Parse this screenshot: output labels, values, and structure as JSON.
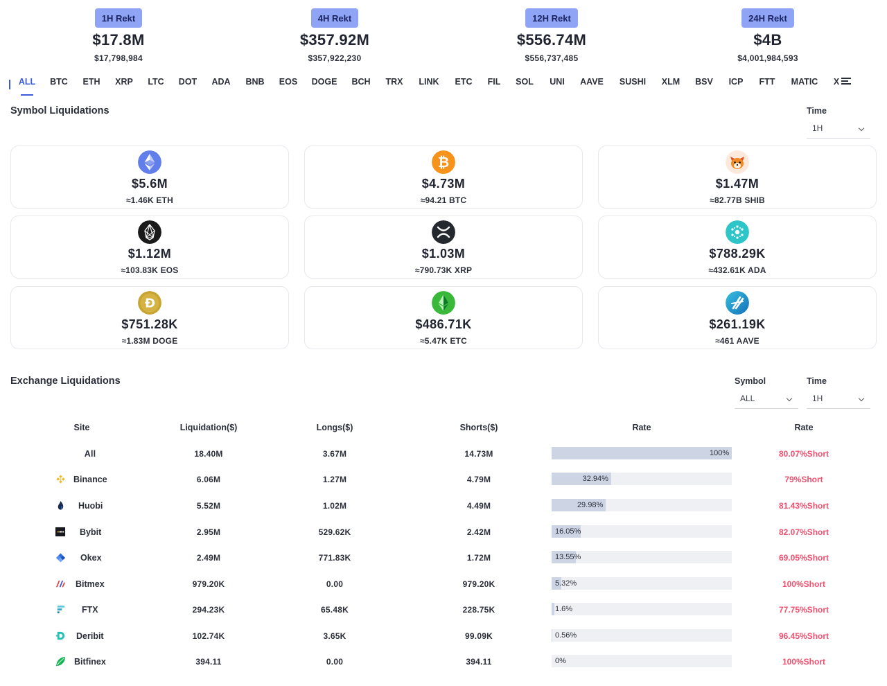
{
  "rekt": [
    {
      "label": "1H Rekt",
      "amount": "$17.8M",
      "exact": "$17,798,984"
    },
    {
      "label": "4H Rekt",
      "amount": "$357.92M",
      "exact": "$357,922,230"
    },
    {
      "label": "12H Rekt",
      "amount": "$556.74M",
      "exact": "$556,737,485"
    },
    {
      "label": "24H Rekt",
      "amount": "$4B",
      "exact": "$4,001,984,593"
    }
  ],
  "tabs": [
    "ALL",
    "BTC",
    "ETH",
    "XRP",
    "LTC",
    "DOT",
    "ADA",
    "BNB",
    "EOS",
    "DOGE",
    "BCH",
    "TRX",
    "LINK",
    "ETC",
    "FIL",
    "SOL",
    "UNI",
    "AAVE",
    "SUSHI",
    "XLM",
    "BSV",
    "ICP",
    "FTT",
    "MATIC",
    "X"
  ],
  "active_tab": "ALL",
  "symbol_section": {
    "title": "Symbol Liquidations",
    "time_label": "Time",
    "time_value": "1H"
  },
  "symbols": [
    {
      "coin": "ethereum-icon",
      "color": "#627eea",
      "amount": "$5.6M",
      "sub": "≈1.46K ETH"
    },
    {
      "coin": "bitcoin-icon",
      "color": "#f7931a",
      "amount": "$4.73M",
      "sub": "≈94.21 BTC"
    },
    {
      "coin": "shiba-icon",
      "color": "#e44f1f",
      "amount": "$1.47M",
      "sub": "≈82.77B SHIB"
    },
    {
      "coin": "eos-icon",
      "color": "#111111",
      "amount": "$1.12M",
      "sub": "≈103.83K EOS"
    },
    {
      "coin": "xrp-icon",
      "color": "#23292f",
      "amount": "$1.03M",
      "sub": "≈790.73K XRP"
    },
    {
      "coin": "cardano-icon",
      "color": "#28c8c8",
      "amount": "$788.29K",
      "sub": "≈432.61K ADA"
    },
    {
      "coin": "dogecoin-icon",
      "color": "#c2a633",
      "amount": "$751.28K",
      "sub": "≈1.83M DOGE"
    },
    {
      "coin": "ethereum-classic-icon",
      "color": "#3ab83a",
      "amount": "$486.71K",
      "sub": "≈5.47K ETC"
    },
    {
      "coin": "aave-icon",
      "color": "#1c9fd0",
      "amount": "$261.19K",
      "sub": "≈461 AAVE"
    }
  ],
  "exchange_section": {
    "title": "Exchange Liquidations",
    "symbol_label": "Symbol",
    "symbol_value": "ALL",
    "time_label": "Time",
    "time_value": "1H"
  },
  "table": {
    "headers": {
      "site": "Site",
      "liquidation": "Liquidation($)",
      "longs": "Longs($)",
      "shorts": "Shorts($)",
      "rate1": "Rate",
      "rate2": "Rate"
    },
    "rows": [
      {
        "site": "All",
        "icon": "",
        "liq": "18.40M",
        "longs": "3.67M",
        "shorts": "14.73M",
        "share_label": "100%",
        "share": 100,
        "rate": "80.07%Short"
      },
      {
        "site": "Binance",
        "icon": "binance-icon",
        "liq": "6.06M",
        "longs": "1.27M",
        "shorts": "4.79M",
        "share_label": "32.94%",
        "share": 32.94,
        "rate": "79%Short"
      },
      {
        "site": "Huobi",
        "icon": "huobi-icon",
        "liq": "5.52M",
        "longs": "1.02M",
        "shorts": "4.49M",
        "share_label": "29.98%",
        "share": 29.98,
        "rate": "81.43%Short"
      },
      {
        "site": "Bybit",
        "icon": "bybit-icon",
        "liq": "2.95M",
        "longs": "529.62K",
        "shorts": "2.42M",
        "share_label": "16.05%",
        "share": 16.05,
        "rate": "82.07%Short"
      },
      {
        "site": "Okex",
        "icon": "okex-icon",
        "liq": "2.49M",
        "longs": "771.83K",
        "shorts": "1.72M",
        "share_label": "13.55%",
        "share": 13.55,
        "rate": "69.05%Short"
      },
      {
        "site": "Bitmex",
        "icon": "bitmex-icon",
        "liq": "979.20K",
        "longs": "0.00",
        "shorts": "979.20K",
        "share_label": "5.32%",
        "share": 5.32,
        "rate": "100%Short"
      },
      {
        "site": "FTX",
        "icon": "ftx-icon",
        "liq": "294.23K",
        "longs": "65.48K",
        "shorts": "228.75K",
        "share_label": "1.6%",
        "share": 1.6,
        "rate": "77.75%Short"
      },
      {
        "site": "Deribit",
        "icon": "deribit-icon",
        "liq": "102.74K",
        "longs": "3.65K",
        "shorts": "99.09K",
        "share_label": "0.56%",
        "share": 0.56,
        "rate": "96.45%Short"
      },
      {
        "site": "Bitfinex",
        "icon": "bitfinex-icon",
        "liq": "394.11",
        "longs": "0.00",
        "shorts": "394.11",
        "share_label": "0%",
        "share": 0,
        "rate": "100%Short"
      }
    ]
  }
}
